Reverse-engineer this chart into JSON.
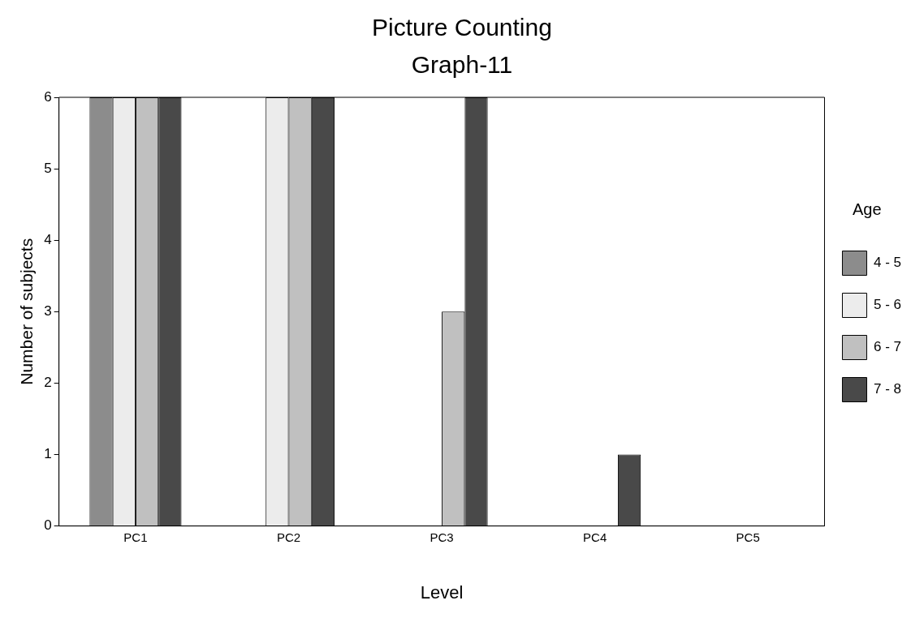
{
  "chart_data": {
    "type": "bar",
    "title": "Picture Counting",
    "subtitle": "Graph-11",
    "xlabel": "Level",
    "ylabel": "Number of subjects",
    "legend_title": "Age",
    "categories": [
      "PC1",
      "PC2",
      "PC3",
      "PC4",
      "PC5"
    ],
    "series": [
      {
        "name": "4 - 5",
        "color": "#8c8c8c",
        "values": [
          6,
          0,
          0,
          0,
          0
        ]
      },
      {
        "name": "5 - 6",
        "color": "#ececec",
        "values": [
          6,
          6,
          0,
          0,
          0
        ]
      },
      {
        "name": "6 - 7",
        "color": "#c0c0c0",
        "values": [
          6,
          6,
          3,
          0,
          0
        ]
      },
      {
        "name": "7 - 8",
        "color": "#494949",
        "values": [
          6,
          6,
          6,
          1,
          0
        ]
      }
    ],
    "ylim": [
      0,
      6
    ],
    "yticks": [
      0,
      1,
      2,
      3,
      4,
      5,
      6
    ],
    "grid": false,
    "legend": "right"
  }
}
